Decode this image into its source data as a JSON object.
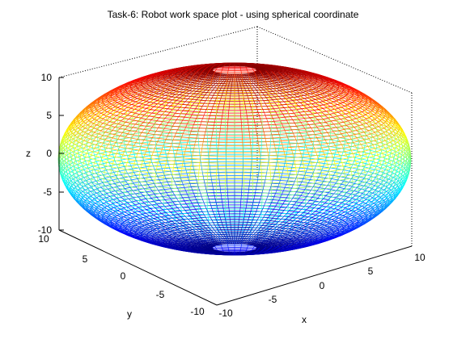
{
  "chart_data": {
    "type": "surface",
    "title": "Task-6: Robot work space plot - using spherical coordinate",
    "xlabel": "x",
    "ylabel": "y",
    "zlabel": "z",
    "xlim": [
      -10,
      10
    ],
    "ylim": [
      -10,
      10
    ],
    "zlim": [
      -10,
      10
    ],
    "x_ticks": [
      -10,
      -5,
      0,
      5,
      10
    ],
    "y_ticks": [
      -10,
      -5,
      0,
      5,
      10
    ],
    "z_ticks": [
      -10,
      -5,
      0,
      5,
      10
    ],
    "colormap": "jet",
    "shape": "flattened spherical shell",
    "radius_xy": 10,
    "z_range": [
      -10,
      10
    ],
    "grid": false,
    "box": true
  }
}
